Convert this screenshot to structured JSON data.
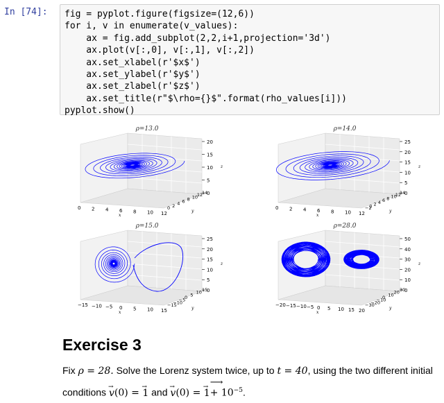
{
  "cell": {
    "prompt": "In [74]:",
    "lines": [
      "fig = pyplot.figure(figsize=(12,6))",
      "for i, v in enumerate(v_values):",
      "    ax = fig.add_subplot(2,2,i+1,projection='3d')",
      "    ax.plot(v[:,0], v[:,1], v[:,2])",
      "    ax.set_xlabel(r'$x$')",
      "    ax.set_ylabel(r'$y$')",
      "    ax.set_zlabel(r'$z$')",
      "    ax.set_title(r\"$\\rho={}$\".format(rho_values[i]))",
      "pyplot.show()"
    ]
  },
  "plots": [
    {
      "title": "ρ=13.0",
      "z_ticks": [
        "20",
        "15",
        "10",
        "5",
        "0"
      ],
      "x_ticks": [
        "0",
        "2",
        "4",
        "6",
        "8",
        "10",
        "12"
      ],
      "y_ticks": [
        "0",
        "2",
        "4",
        "6",
        "8",
        "10",
        "12",
        "14"
      ],
      "xlabel": "x",
      "ylabel": "y",
      "zlabel": "z"
    },
    {
      "title": "ρ=14.0",
      "z_ticks": [
        "25",
        "20",
        "15",
        "10",
        "5",
        "0"
      ],
      "x_ticks": [
        "0",
        "2",
        "4",
        "6",
        "8",
        "10",
        "12"
      ],
      "y_ticks": [
        "−2",
        "0",
        "2",
        "4",
        "6",
        "8",
        "10",
        "12",
        "14"
      ],
      "xlabel": "x",
      "ylabel": "y",
      "zlabel": "z"
    },
    {
      "title": "ρ=15.0",
      "z_ticks": [
        "25",
        "20",
        "15",
        "10",
        "5",
        "0"
      ],
      "x_ticks": [
        "−15",
        "−10",
        "−5",
        "0",
        "5",
        "10",
        "15"
      ],
      "y_ticks": [
        "−15",
        "−10",
        "−5",
        "0",
        "5",
        "10",
        "15"
      ],
      "xlabel": "x",
      "ylabel": "y",
      "zlabel": "z"
    },
    {
      "title": "ρ=28.0",
      "z_ticks": [
        "50",
        "40",
        "30",
        "20",
        "10",
        "0"
      ],
      "x_ticks": [
        "−20",
        "−15",
        "−10",
        "−5",
        "0",
        "5",
        "10",
        "15",
        "20"
      ],
      "y_ticks": [
        "−30",
        "−20",
        "−10",
        "0",
        "10",
        "20",
        "30"
      ],
      "xlabel": "x",
      "ylabel": "y",
      "zlabel": "z"
    }
  ],
  "markdown": {
    "heading": "Exercise 3",
    "p1": "Fix",
    "rho_expr": "ρ = 28.",
    "p2": "Solve the Lorenz system twice, up to",
    "t_expr": "t = 40",
    "p3": ", using the two different initial",
    "p4": "conditions",
    "cond1": "(0) = ",
    "p5": "and",
    "cond2": "(0) = ",
    "plus": " + 10",
    "exp": "−5",
    "end": "."
  },
  "colors": {
    "line": "#0000ff",
    "prompt": "#303f9f",
    "cell_bg": "#f7f7f7"
  }
}
